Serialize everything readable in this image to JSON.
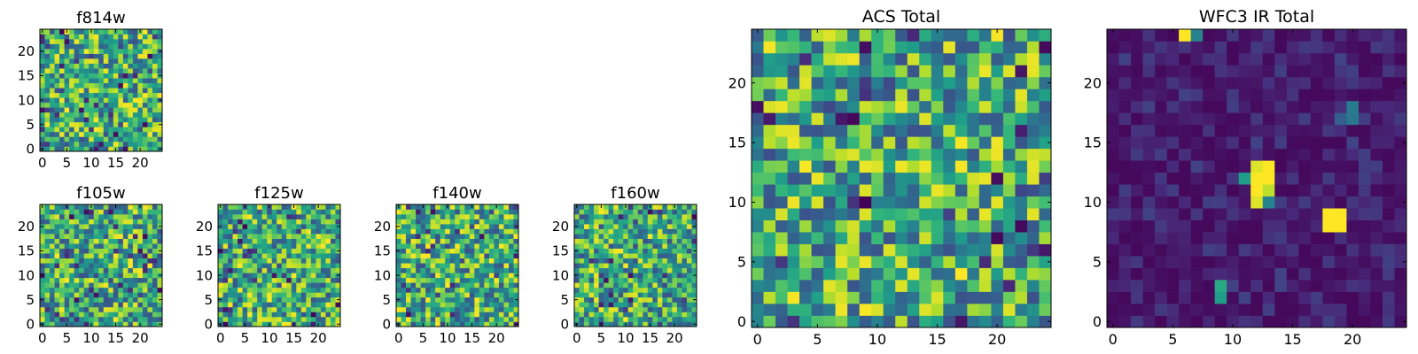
{
  "chart_data": [
    {
      "type": "heatmap",
      "title": "f814w",
      "xticks": [
        "0",
        "5",
        "10",
        "15",
        "20"
      ],
      "yticks": [
        "0",
        "5",
        "10",
        "15",
        "20"
      ],
      "xlim": [
        -0.5,
        24.5
      ],
      "ylim": [
        -0.5,
        24.5
      ],
      "grid_size": 25,
      "colormap": "viridis",
      "pattern": "noise",
      "seed": 11,
      "vmin": 0.0,
      "vmax": 1.0
    },
    {
      "type": "heatmap",
      "title": "f105w",
      "xticks": [
        "0",
        "5",
        "10",
        "15",
        "20"
      ],
      "yticks": [
        "0",
        "5",
        "10",
        "15",
        "20"
      ],
      "xlim": [
        -0.5,
        24.5
      ],
      "ylim": [
        -0.5,
        24.5
      ],
      "grid_size": 25,
      "colormap": "viridis",
      "pattern": "noise",
      "seed": 23,
      "vmin": 0.0,
      "vmax": 1.0
    },
    {
      "type": "heatmap",
      "title": "f125w",
      "xticks": [
        "0",
        "5",
        "10",
        "15",
        "20"
      ],
      "yticks": [
        "0",
        "5",
        "10",
        "15",
        "20"
      ],
      "xlim": [
        -0.5,
        24.5
      ],
      "ylim": [
        -0.5,
        24.5
      ],
      "grid_size": 25,
      "colormap": "viridis",
      "pattern": "noise",
      "seed": 37,
      "vmin": 0.0,
      "vmax": 1.0
    },
    {
      "type": "heatmap",
      "title": "f140w",
      "xticks": [
        "0",
        "5",
        "10",
        "15",
        "20"
      ],
      "yticks": [
        "0",
        "5",
        "10",
        "15",
        "20"
      ],
      "xlim": [
        -0.5,
        24.5
      ],
      "ylim": [
        -0.5,
        24.5
      ],
      "grid_size": 25,
      "colormap": "viridis",
      "pattern": "noise",
      "seed": 41,
      "vmin": 0.0,
      "vmax": 1.0
    },
    {
      "type": "heatmap",
      "title": "f160w",
      "xticks": [
        "0",
        "5",
        "10",
        "15",
        "20"
      ],
      "yticks": [
        "0",
        "5",
        "10",
        "15",
        "20"
      ],
      "xlim": [
        -0.5,
        24.5
      ],
      "ylim": [
        -0.5,
        24.5
      ],
      "grid_size": 25,
      "colormap": "viridis",
      "pattern": "noise",
      "seed": 53,
      "vmin": 0.0,
      "vmax": 1.0
    },
    {
      "type": "heatmap",
      "title": "ACS Total",
      "xticks": [
        "0",
        "5",
        "10",
        "15",
        "20"
      ],
      "yticks": [
        "0",
        "5",
        "10",
        "15",
        "20"
      ],
      "xlim": [
        -0.5,
        24.5
      ],
      "ylim": [
        -0.5,
        24.5
      ],
      "grid_size": 25,
      "colormap": "viridis",
      "pattern": "noise",
      "seed": 67,
      "vmin": 0.0,
      "vmax": 1.0
    },
    {
      "type": "heatmap",
      "title": "WFC3 IR Total",
      "xticks": [
        "0",
        "5",
        "10",
        "15",
        "20"
      ],
      "yticks": [
        "0",
        "5",
        "10",
        "15",
        "20"
      ],
      "xlim": [
        -0.5,
        24.5
      ],
      "ylim": [
        -0.5,
        24.5
      ],
      "grid_size": 25,
      "colormap": "viridis",
      "pattern": "sparse",
      "seed": 79,
      "vmin": 0.0,
      "vmax": 1.0,
      "bright_pixels": [
        {
          "x": 6,
          "y": 24,
          "value": 1.0
        },
        {
          "x": 7,
          "y": 24,
          "value": 0.45
        },
        {
          "x": 12,
          "y": 13,
          "value": 0.95
        },
        {
          "x": 13,
          "y": 13,
          "value": 1.0
        },
        {
          "x": 11,
          "y": 12,
          "value": 0.55
        },
        {
          "x": 12,
          "y": 12,
          "value": 1.0
        },
        {
          "x": 13,
          "y": 12,
          "value": 1.0
        },
        {
          "x": 12,
          "y": 11,
          "value": 1.0
        },
        {
          "x": 13,
          "y": 11,
          "value": 0.9
        },
        {
          "x": 12,
          "y": 10,
          "value": 0.95
        },
        {
          "x": 13,
          "y": 10,
          "value": 0.45
        },
        {
          "x": 18,
          "y": 9,
          "value": 1.0
        },
        {
          "x": 19,
          "y": 9,
          "value": 1.0
        },
        {
          "x": 18,
          "y": 8,
          "value": 1.0
        },
        {
          "x": 19,
          "y": 8,
          "value": 1.0
        },
        {
          "x": 20,
          "y": 18,
          "value": 0.42
        },
        {
          "x": 20,
          "y": 17,
          "value": 0.4
        },
        {
          "x": 19,
          "y": 17,
          "value": 0.3
        },
        {
          "x": 9,
          "y": 3,
          "value": 0.6
        },
        {
          "x": 9,
          "y": 2,
          "value": 0.55
        }
      ]
    }
  ]
}
